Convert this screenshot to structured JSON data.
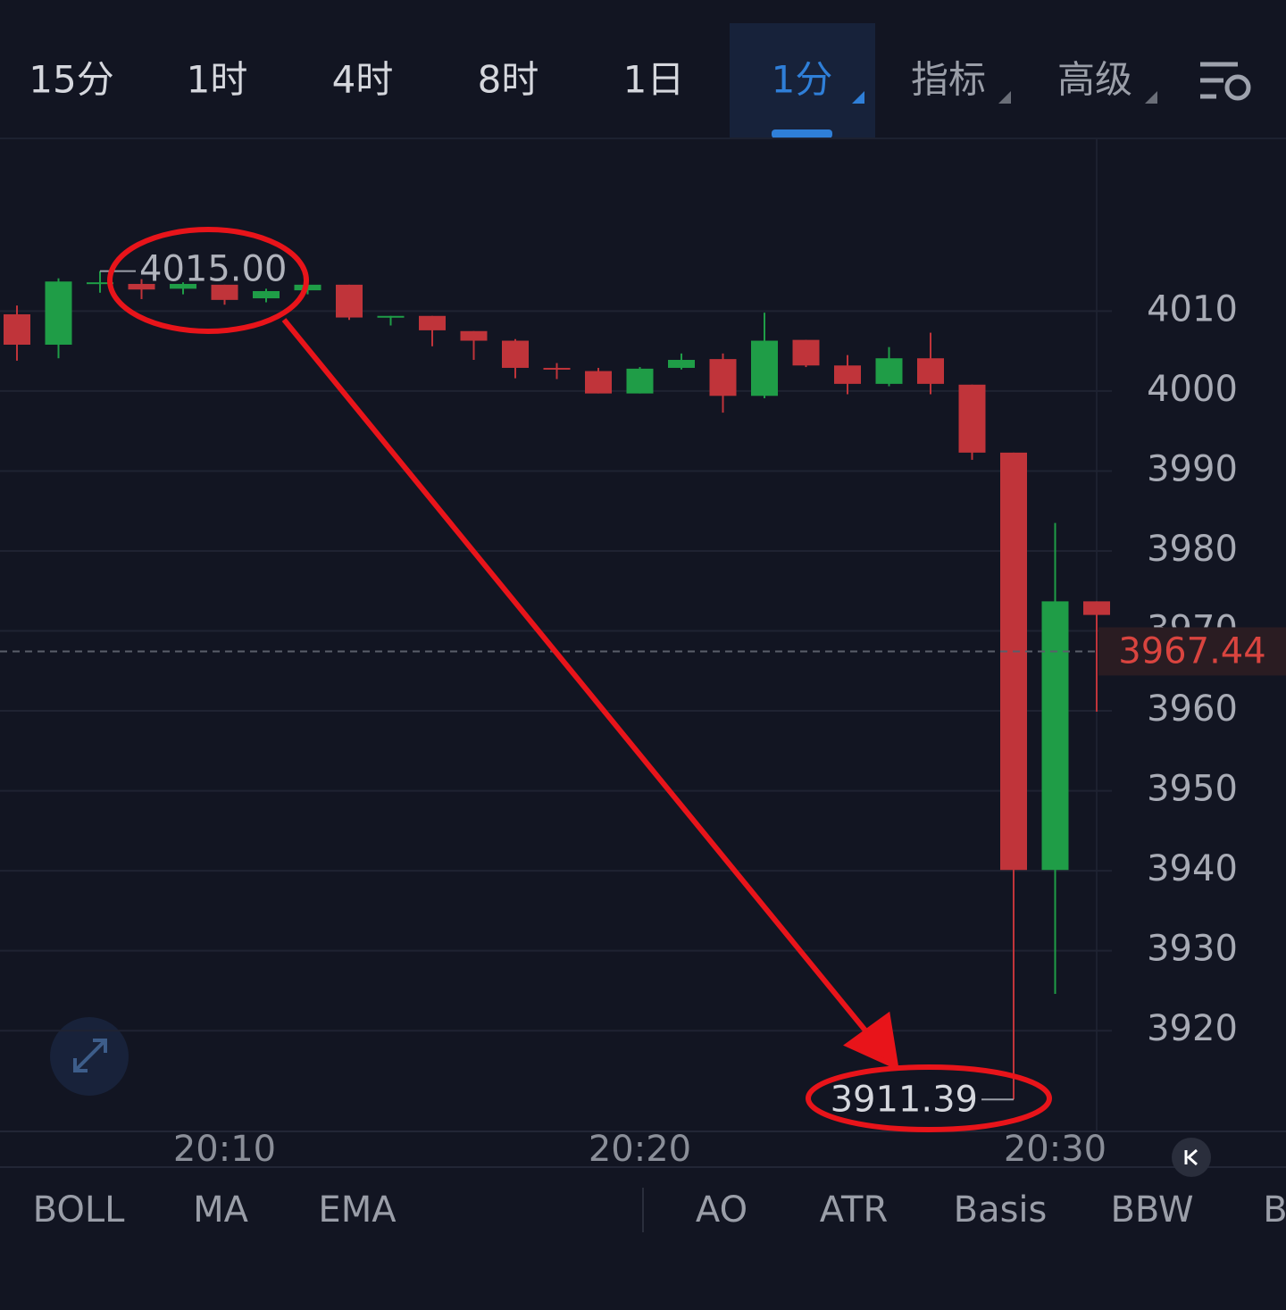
{
  "tabs": [
    "15分",
    "1时",
    "4时",
    "8时",
    "1日",
    "1分",
    "指标",
    "高级"
  ],
  "active_tab": 5,
  "chart_data": {
    "type": "candlestick",
    "categories": [
      null,
      null,
      null,
      null,
      null,
      "20:10",
      null,
      null,
      null,
      null,
      null,
      null,
      null,
      null,
      null,
      "20:20",
      null,
      null,
      null,
      null,
      null,
      null,
      null,
      null,
      null,
      "20:30",
      null
    ],
    "open": [
      4009.6,
      4005.8,
      4013.6,
      4013.4,
      4012.8,
      4013.3,
      4011.6,
      4012.6,
      4013.3,
      4009.2,
      4009.4,
      4007.5,
      4006.3,
      4002.9,
      4002.5,
      3999.7,
      4002.9,
      4004.0,
      3999.4,
      4006.4,
      4003.2,
      4000.9,
      4004.1,
      4000.8,
      3992.3,
      3940.1,
      3973.7
    ],
    "high": [
      4010.7,
      4014.1,
      4015.0,
      4014.0,
      4013.6,
      4013.3,
      4012.8,
      4013.9,
      4013.3,
      4009.4,
      4009.4,
      4007.5,
      4006.5,
      4003.5,
      4002.9,
      4003.0,
      4004.7,
      4004.7,
      4009.8,
      4006.4,
      4004.5,
      4005.5,
      4007.3,
      4000.8,
      3992.3,
      3983.5,
      3973.7
    ],
    "low": [
      4003.8,
      4004.1,
      4012.3,
      4011.5,
      4012.1,
      4010.8,
      4011.1,
      4012.1,
      4008.9,
      4008.2,
      4005.6,
      4003.9,
      4001.6,
      4001.5,
      3999.7,
      3999.7,
      4002.7,
      3997.3,
      3999.1,
      4003.0,
      3999.6,
      4000.6,
      3999.6,
      3991.4,
      3911.39,
      3924.6,
      3959.9
    ],
    "close": [
      4005.8,
      4013.7,
      4013.6,
      4012.7,
      4013.4,
      4011.4,
      4012.5,
      4013.3,
      4009.2,
      4009.4,
      4007.6,
      4006.3,
      4002.9,
      4002.7,
      3999.7,
      4002.8,
      4003.9,
      3999.4,
      4006.3,
      4003.2,
      4000.9,
      4004.1,
      4000.9,
      3992.3,
      3940.1,
      3973.7,
      3972.0
    ],
    "up_color": "#1f9d47",
    "down_color": "#c0343a",
    "ylim": [
      3907.4,
      4031.6
    ],
    "yticks": [
      3920,
      3930,
      3940,
      3950,
      3960,
      3970,
      3980,
      3990,
      4000,
      4010
    ],
    "grid": true,
    "current_price": 3967.44,
    "high_marker": {
      "value": 4015,
      "label": "4015.00"
    },
    "low_marker": 3911.39
  },
  "indicators": [
    "BOLL",
    "MA",
    "EMA",
    "AO",
    "ATR",
    "Basis",
    "BBW",
    "B"
  ]
}
